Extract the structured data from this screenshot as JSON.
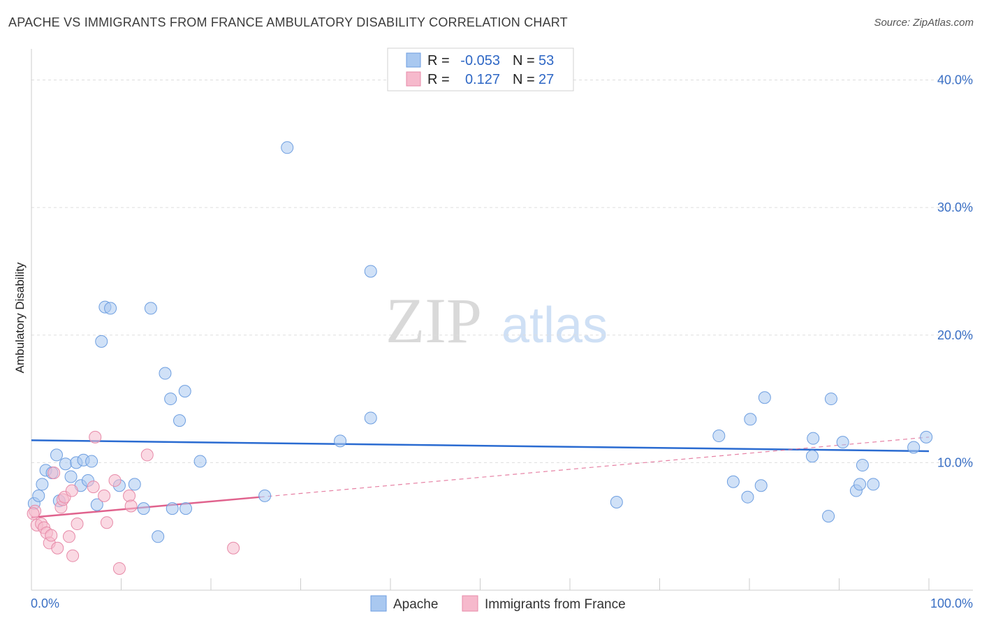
{
  "title": "APACHE VS IMMIGRANTS FROM FRANCE AMBULATORY DISABILITY CORRELATION CHART",
  "source": "Source: ZipAtlas.com",
  "watermark": {
    "zip": "ZIP",
    "atlas": "atlas"
  },
  "legend": {
    "rows": [
      {
        "r_label": "R =",
        "r_value": "-0.053",
        "n_label": "N =",
        "n_value": "53",
        "color": "#a9c8f0"
      },
      {
        "r_label": "R =",
        "r_value": "0.127",
        "n_label": "N =",
        "n_value": "27",
        "color": "#f6b9cc"
      }
    ]
  },
  "chart_data": {
    "type": "scatter",
    "title": "APACHE VS IMMIGRANTS FROM FRANCE AMBULATORY DISABILITY CORRELATION CHART",
    "xlabel": "",
    "ylabel": "Ambulatory Disability",
    "xlim": [
      0,
      100
    ],
    "ylim": [
      0,
      42
    ],
    "x_tick_labels": [
      "0.0%",
      "100.0%"
    ],
    "y_ticks": [
      10,
      20,
      30,
      40
    ],
    "y_tick_labels": [
      "10.0%",
      "20.0%",
      "30.0%",
      "40.0%"
    ],
    "grid": true,
    "series": [
      {
        "name": "Apache",
        "color": "#a9c8f0",
        "stroke": "#6d9ee0",
        "trend": {
          "x0": 0,
          "y0": 11.75,
          "x1": 100,
          "y1": 10.9,
          "color": "#2a6bd1"
        },
        "points": [
          [
            0.3,
            6.8
          ],
          [
            0.8,
            7.4
          ],
          [
            1.2,
            8.3
          ],
          [
            1.6,
            9.4
          ],
          [
            2.3,
            9.2
          ],
          [
            2.8,
            10.6
          ],
          [
            3.1,
            7.0
          ],
          [
            3.8,
            9.9
          ],
          [
            4.4,
            8.9
          ],
          [
            5.0,
            10.0
          ],
          [
            5.5,
            8.2
          ],
          [
            5.8,
            10.2
          ],
          [
            6.3,
            8.6
          ],
          [
            6.7,
            10.1
          ],
          [
            7.3,
            6.7
          ],
          [
            7.8,
            19.5
          ],
          [
            8.2,
            22.2
          ],
          [
            8.8,
            22.1
          ],
          [
            9.8,
            8.2
          ],
          [
            11.5,
            8.3
          ],
          [
            12.5,
            6.4
          ],
          [
            13.3,
            22.1
          ],
          [
            14.1,
            4.2
          ],
          [
            14.9,
            17.0
          ],
          [
            15.5,
            15.0
          ],
          [
            15.7,
            6.4
          ],
          [
            16.5,
            13.3
          ],
          [
            17.1,
            15.6
          ],
          [
            17.2,
            6.4
          ],
          [
            18.8,
            10.1
          ],
          [
            26.0,
            7.4
          ],
          [
            28.5,
            34.7
          ],
          [
            34.4,
            11.7
          ],
          [
            37.8,
            25.0
          ],
          [
            37.8,
            13.5
          ],
          [
            65.2,
            6.9
          ],
          [
            76.6,
            12.1
          ],
          [
            78.2,
            8.5
          ],
          [
            79.8,
            7.3
          ],
          [
            80.1,
            13.4
          ],
          [
            81.3,
            8.2
          ],
          [
            81.7,
            15.1
          ],
          [
            87.0,
            10.5
          ],
          [
            87.1,
            11.9
          ],
          [
            88.8,
            5.8
          ],
          [
            89.1,
            15.0
          ],
          [
            90.4,
            11.6
          ],
          [
            91.9,
            7.8
          ],
          [
            92.3,
            8.3
          ],
          [
            92.6,
            9.8
          ],
          [
            93.8,
            8.3
          ],
          [
            98.3,
            11.2
          ],
          [
            99.7,
            12.0
          ]
        ]
      },
      {
        "name": "Immigrants from France",
        "color": "#f6b9cc",
        "stroke": "#e78aa8",
        "trend": {
          "x0": 0,
          "y0": 5.7,
          "x1": 25.5,
          "y1": 7.3,
          "x_dash_end": 100,
          "y_dash_end": 12.0,
          "color": "#e0628d"
        },
        "points": [
          [
            0.4,
            6.2
          ],
          [
            0.6,
            5.1
          ],
          [
            1.1,
            5.2
          ],
          [
            1.4,
            4.9
          ],
          [
            1.7,
            4.5
          ],
          [
            2.0,
            3.7
          ],
          [
            2.2,
            4.3
          ],
          [
            2.5,
            9.2
          ],
          [
            2.9,
            3.3
          ],
          [
            3.3,
            6.5
          ],
          [
            3.5,
            7.1
          ],
          [
            3.7,
            7.3
          ],
          [
            4.2,
            4.2
          ],
          [
            4.5,
            7.8
          ],
          [
            4.6,
            2.7
          ],
          [
            5.1,
            5.2
          ],
          [
            6.9,
            8.1
          ],
          [
            7.1,
            12.0
          ],
          [
            8.1,
            7.4
          ],
          [
            8.4,
            5.3
          ],
          [
            9.3,
            8.6
          ],
          [
            9.8,
            1.7
          ],
          [
            10.9,
            7.4
          ],
          [
            11.1,
            6.6
          ],
          [
            12.9,
            10.6
          ],
          [
            22.5,
            3.3
          ],
          [
            0.2,
            6.0
          ]
        ]
      }
    ]
  },
  "bottom_legend": [
    {
      "label": "Apache",
      "color": "#a9c8f0"
    },
    {
      "label": "Immigrants from France",
      "color": "#f6b9cc"
    }
  ]
}
